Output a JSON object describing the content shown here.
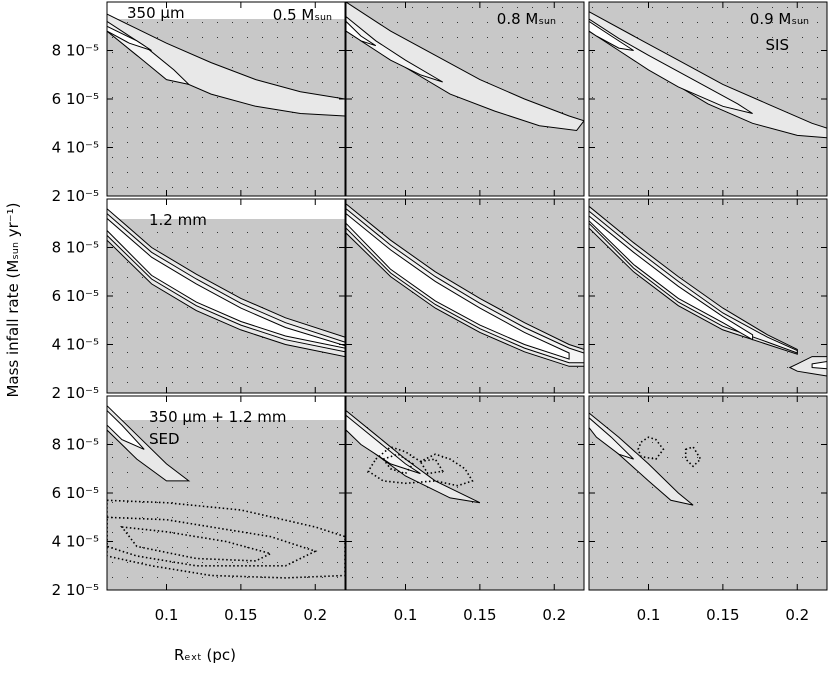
{
  "chart_data": {
    "type": "contour",
    "xlabel": "Rₑₓₜ (pc)",
    "ylabel": "Mass infall rate (Mₛᵤₙ yr⁻¹)",
    "xlim": [
      0.06,
      0.22
    ],
    "ylim": [
      2e-05,
      0.0001
    ],
    "xticks": [
      0.1,
      0.15,
      0.2
    ],
    "yticks": [
      {
        "value": 2e-05,
        "label": "2 10⁻⁵"
      },
      {
        "value": 4e-05,
        "label": "4 10⁻⁵"
      },
      {
        "value": 6e-05,
        "label": "6 10⁻⁵"
      },
      {
        "value": 8e-05,
        "label": "8 10⁻⁵"
      }
    ],
    "panels": [
      {
        "annotations": [
          "350 μm",
          "0.5 Mₛᵤₙ"
        ],
        "contours": [
          {
            "style": "solid",
            "fill": "#e8e8e8",
            "x": [
              0.06,
              0.08,
              0.1,
              0.13,
              0.16,
              0.19,
              0.22,
              0.22,
              0.19,
              0.16,
              0.13,
              0.1,
              0.08,
              0.06
            ],
            "y": [
              9.5e-05,
              8.9e-05,
              8.3e-05,
              7.5e-05,
              6.8e-05,
              6.3e-05,
              6e-05,
              5.3e-05,
              5.4e-05,
              5.7e-05,
              6.2e-05,
              7e-05,
              7.8e-05,
              8.8e-05
            ]
          },
          {
            "style": "solid",
            "fill": "#f4f4f4",
            "x": [
              0.06,
              0.085,
              0.105,
              0.115,
              0.1,
              0.08,
              0.06
            ],
            "y": [
              9.2e-05,
              8.2e-05,
              7.2e-05,
              6.6e-05,
              6.8e-05,
              7.8e-05,
              8.8e-05
            ]
          },
          {
            "style": "solid",
            "fill": "#ffffff",
            "x": [
              0.06,
              0.08,
              0.09,
              0.075,
              0.06
            ],
            "y": [
              9e-05,
              8.4e-05,
              8e-05,
              8.3e-05,
              8.8e-05
            ]
          }
        ]
      },
      {
        "annotations": [
          "0.8 Mₛᵤₙ"
        ],
        "contours": [
          {
            "style": "solid",
            "fill": "#e8e8e8",
            "x": [
              0.06,
              0.09,
              0.12,
              0.15,
              0.18,
              0.21,
              0.22,
              0.215,
              0.19,
              0.16,
              0.13,
              0.1,
              0.08,
              0.06
            ],
            "y": [
              0.0001,
              8.8e-05,
              7.8e-05,
              6.8e-05,
              6e-05,
              5.3e-05,
              5.1e-05,
              4.7e-05,
              4.9e-05,
              5.5e-05,
              6.2e-05,
              7.3e-05,
              8.2e-05,
              9.3e-05
            ]
          },
          {
            "style": "solid",
            "fill": "#f4f4f4",
            "x": [
              0.06,
              0.08,
              0.1,
              0.125,
              0.11,
              0.09,
              0.07,
              0.06
            ],
            "y": [
              9.4e-05,
              8.4e-05,
              7.6e-05,
              6.7e-05,
              7e-05,
              7.6e-05,
              8.4e-05,
              8.9e-05
            ]
          },
          {
            "style": "solid",
            "fill": "#ffffff",
            "x": [
              0.06,
              0.07,
              0.08,
              0.07,
              0.06
            ],
            "y": [
              9.2e-05,
              8.6e-05,
              8.2e-05,
              8.4e-05,
              8.8e-05
            ]
          }
        ]
      },
      {
        "annotations": [
          "0.9 Mₛᵤₙ",
          "SIS"
        ],
        "contours": [
          {
            "style": "solid",
            "fill": "#e8e8e8",
            "x": [
              0.06,
              0.09,
              0.12,
              0.15,
              0.18,
              0.21,
              0.22,
              0.22,
              0.2,
              0.17,
              0.14,
              0.11,
              0.08,
              0.06
            ],
            "y": [
              9.6e-05,
              8.6e-05,
              7.6e-05,
              6.6e-05,
              5.8e-05,
              5e-05,
              4.8e-05,
              4.4e-05,
              4.5e-05,
              5e-05,
              5.8e-05,
              6.9e-05,
              8.1e-05,
              9.1e-05
            ]
          },
          {
            "style": "solid",
            "fill": "#f4f4f4",
            "x": [
              0.06,
              0.08,
              0.1,
              0.13,
              0.16,
              0.17,
              0.15,
              0.12,
              0.1,
              0.08,
              0.06
            ],
            "y": [
              9.3e-05,
              8.5e-05,
              7.8e-05,
              6.8e-05,
              5.8e-05,
              5.4e-05,
              5.7e-05,
              6.5e-05,
              7.2e-05,
              8e-05,
              8.8e-05
            ]
          },
          {
            "style": "solid",
            "fill": "#ffffff",
            "x": [
              0.06,
              0.075,
              0.09,
              0.08,
              0.065,
              0.06
            ],
            "y": [
              9.2e-05,
              8.6e-05,
              8e-05,
              8.1e-05,
              8.6e-05,
              8.8e-05
            ]
          }
        ]
      },
      {
        "annotations": [
          "1.2 mm"
        ],
        "contours": [
          {
            "style": "solid",
            "fill": "#e8e8e8",
            "x": [
              0.06,
              0.09,
              0.12,
              0.15,
              0.18,
              0.22,
              0.22,
              0.18,
              0.15,
              0.12,
              0.09,
              0.06
            ],
            "y": [
              9.6e-05,
              8e-05,
              6.9e-05,
              5.9e-05,
              5.1e-05,
              4.3e-05,
              3.5e-05,
              4e-05,
              4.6e-05,
              5.4e-05,
              6.5e-05,
              8.3e-05
            ]
          },
          {
            "style": "solid",
            "fill": "#f4f4f4",
            "x": [
              0.06,
              0.09,
              0.12,
              0.15,
              0.18,
              0.22,
              0.22,
              0.18,
              0.15,
              0.12,
              0.09,
              0.06
            ],
            "y": [
              9.4e-05,
              7.8e-05,
              6.7e-05,
              5.7e-05,
              4.9e-05,
              4.1e-05,
              3.7e-05,
              4.2e-05,
              4.8e-05,
              5.6e-05,
              6.7e-05,
              8.5e-05
            ]
          },
          {
            "style": "solid",
            "fill": "#ffffff",
            "x": [
              0.06,
              0.09,
              0.12,
              0.15,
              0.18,
              0.22,
              0.22,
              0.18,
              0.15,
              0.12,
              0.09,
              0.06
            ],
            "y": [
              9.2e-05,
              7.6e-05,
              6.5e-05,
              5.5e-05,
              4.7e-05,
              3.95e-05,
              3.85e-05,
              4.35e-05,
              4.95e-05,
              5.75e-05,
              6.85e-05,
              8.7e-05
            ]
          }
        ]
      },
      {
        "annotations": [],
        "contours": [
          {
            "style": "solid",
            "fill": "#e8e8e8",
            "x": [
              0.06,
              0.09,
              0.12,
              0.15,
              0.18,
              0.21,
              0.22,
              0.22,
              0.21,
              0.18,
              0.15,
              0.12,
              0.09,
              0.06
            ],
            "y": [
              9.8e-05,
              8.3e-05,
              7e-05,
              5.9e-05,
              4.9e-05,
              4e-05,
              3.8e-05,
              3.1e-05,
              3.1e-05,
              3.7e-05,
              4.5e-05,
              5.5e-05,
              6.8e-05,
              8.6e-05
            ]
          },
          {
            "style": "solid",
            "fill": "#f4f4f4",
            "x": [
              0.06,
              0.09,
              0.12,
              0.15,
              0.18,
              0.21,
              0.22,
              0.22,
              0.21,
              0.18,
              0.15,
              0.12,
              0.09,
              0.06
            ],
            "y": [
              9.6e-05,
              8.1e-05,
              6.8e-05,
              5.7e-05,
              4.7e-05,
              3.85e-05,
              3.65e-05,
              3.25e-05,
              3.25e-05,
              3.85e-05,
              4.65e-05,
              5.65e-05,
              6.95e-05,
              8.8e-05
            ]
          },
          {
            "style": "solid",
            "fill": "#ffffff",
            "x": [
              0.06,
              0.09,
              0.12,
              0.15,
              0.18,
              0.21,
              0.21,
              0.18,
              0.15,
              0.12,
              0.09,
              0.06
            ],
            "y": [
              9.4e-05,
              7.9e-05,
              6.6e-05,
              5.5e-05,
              4.5e-05,
              3.65e-05,
              3.4e-05,
              4e-05,
              4.8e-05,
              5.8e-05,
              7.1e-05,
              9e-05
            ]
          }
        ]
      },
      {
        "annotations": [],
        "contours": [
          {
            "style": "solid",
            "fill": "#e8e8e8",
            "x": [
              0.06,
              0.09,
              0.12,
              0.15,
              0.18,
              0.2,
              0.2,
              0.18,
              0.15,
              0.12,
              0.09,
              0.06
            ],
            "y": [
              9.7e-05,
              8.2e-05,
              6.8e-05,
              5.5e-05,
              4.4e-05,
              3.8e-05,
              3.6e-05,
              4e-05,
              4.6e-05,
              5.6e-05,
              7e-05,
              8.8e-05
            ]
          },
          {
            "style": "solid",
            "fill": "#f4f4f4",
            "x": [
              0.06,
              0.09,
              0.12,
              0.15,
              0.18,
              0.2,
              0.2,
              0.18,
              0.15,
              0.12,
              0.09,
              0.06
            ],
            "y": [
              9.5e-05,
              8e-05,
              6.6e-05,
              5.3e-05,
              4.3e-05,
              3.75e-05,
              3.65e-05,
              4.1e-05,
              4.75e-05,
              5.75e-05,
              7.15e-05,
              9e-05
            ]
          },
          {
            "style": "solid",
            "fill": "#ffffff",
            "x": [
              0.06,
              0.09,
              0.12,
              0.15,
              0.17,
              0.17,
              0.15,
              0.12,
              0.09,
              0.06
            ],
            "y": [
              9.3e-05,
              7.8e-05,
              6.4e-05,
              5.15e-05,
              4.4e-05,
              4.2e-05,
              4.9e-05,
              5.9e-05,
              7.3e-05,
              9.1e-05
            ]
          },
          {
            "style": "solid",
            "fill": "#e8e8e8",
            "x": [
              0.2,
              0.21,
              0.22,
              0.22,
              0.21,
              0.2,
              0.195
            ],
            "y": [
              3.2e-05,
              3.5e-05,
              3.5e-05,
              2.7e-05,
              2.8e-05,
              2.9e-05,
              3.05e-05
            ]
          },
          {
            "style": "solid",
            "fill": "#ffffff",
            "x": [
              0.21,
              0.22,
              0.22,
              0.21
            ],
            "y": [
              3.2e-05,
              3.3e-05,
              3e-05,
              3.05e-05
            ]
          }
        ]
      },
      {
        "annotations": [
          "350 μm + 1.2 mm",
          "SED"
        ],
        "contours": [
          {
            "style": "solid",
            "fill": "#e8e8e8",
            "x": [
              0.06,
              0.08,
              0.1,
              0.115,
              0.1,
              0.08,
              0.06
            ],
            "y": [
              9.6e-05,
              8.4e-05,
              7.2e-05,
              6.5e-05,
              6.5e-05,
              7.4e-05,
              8.6e-05
            ]
          },
          {
            "style": "solid",
            "fill": "#ffffff",
            "x": [
              0.06,
              0.07,
              0.085,
              0.07,
              0.06
            ],
            "y": [
              9.4e-05,
              8.8e-05,
              7.8e-05,
              8.2e-05,
              8.8e-05
            ]
          },
          {
            "style": "dotted",
            "fill": "none",
            "x": [
              0.06,
              0.1,
              0.15,
              0.2,
              0.22,
              0.22,
              0.18,
              0.13,
              0.09,
              0.06
            ],
            "y": [
              5.7e-05,
              5.6e-05,
              5.3e-05,
              4.6e-05,
              4.2e-05,
              2.6e-05,
              2.5e-05,
              2.6e-05,
              3e-05,
              3.4e-05
            ]
          },
          {
            "style": "dotted",
            "fill": "none",
            "x": [
              0.06,
              0.1,
              0.14,
              0.17,
              0.2,
              0.18,
              0.12,
              0.08,
              0.06
            ],
            "y": [
              5e-05,
              4.9e-05,
              4.5e-05,
              4.2e-05,
              3.6e-05,
              3e-05,
              3e-05,
              3.4e-05,
              3.8e-05
            ]
          },
          {
            "style": "dotted",
            "fill": "none",
            "x": [
              0.07,
              0.1,
              0.14,
              0.17,
              0.16,
              0.12,
              0.08
            ],
            "y": [
              4.6e-05,
              4.4e-05,
              4e-05,
              3.5e-05,
              3.2e-05,
              3.3e-05,
              3.8e-05
            ]
          }
        ]
      },
      {
        "annotations": [],
        "contours": [
          {
            "style": "solid",
            "fill": "#e8e8e8",
            "x": [
              0.06,
              0.08,
              0.1,
              0.12,
              0.14,
              0.15,
              0.13,
              0.1,
              0.08,
              0.06
            ],
            "y": [
              9.4e-05,
              8.4e-05,
              7.4e-05,
              6.5e-05,
              5.9e-05,
              5.6e-05,
              5.8e-05,
              6.7e-05,
              7.6e-05,
              8.6e-05
            ]
          },
          {
            "style": "solid",
            "fill": "#f4f4f4",
            "x": [
              0.06,
              0.08,
              0.1,
              0.11,
              0.09,
              0.07,
              0.06
            ],
            "y": [
              9.2e-05,
              8.2e-05,
              7.2e-05,
              6.8e-05,
              7.2e-05,
              8e-05,
              8.6e-05
            ]
          },
          {
            "style": "dotted",
            "fill": "none",
            "x": [
              0.08,
              0.09,
              0.1,
              0.11,
              0.12,
              0.13,
              0.14,
              0.145,
              0.135,
              0.12,
              0.1,
              0.085,
              0.075
            ],
            "y": [
              7.4e-05,
              7.9e-05,
              7.7e-05,
              7.3e-05,
              7.6e-05,
              7.4e-05,
              7e-05,
              6.5e-05,
              6.3e-05,
              6.5e-05,
              6.4e-05,
              6.5e-05,
              6.9e-05
            ]
          },
          {
            "style": "dotted",
            "fill": "none",
            "x": [
              0.085,
              0.095,
              0.105,
              0.1,
              0.09
            ],
            "y": [
              7.4e-05,
              7.6e-05,
              7.2e-05,
              6.8e-05,
              7e-05
            ]
          },
          {
            "style": "dotted",
            "fill": "none",
            "x": [
              0.11,
              0.12,
              0.125,
              0.115
            ],
            "y": [
              7.3e-05,
              7.4e-05,
              6.9e-05,
              6.8e-05
            ]
          }
        ]
      },
      {
        "annotations": [],
        "contours": [
          {
            "style": "solid",
            "fill": "#e8e8e8",
            "x": [
              0.06,
              0.08,
              0.1,
              0.12,
              0.13,
              0.115,
              0.1,
              0.08,
              0.06
            ],
            "y": [
              9.3e-05,
              8.3e-05,
              7.2e-05,
              6e-05,
              5.5e-05,
              5.7e-05,
              6.5e-05,
              7.6e-05,
              8.7e-05
            ]
          },
          {
            "style": "solid",
            "fill": "#f4f4f4",
            "x": [
              0.06,
              0.075,
              0.09,
              0.08,
              0.065,
              0.06
            ],
            "y": [
              9.1e-05,
              8.3e-05,
              7.4e-05,
              7.6e-05,
              8.3e-05,
              8.7e-05
            ]
          },
          {
            "style": "dotted",
            "fill": "none",
            "x": [
              0.095,
              0.1,
              0.105,
              0.11,
              0.105,
              0.095,
              0.093
            ],
            "y": [
              8.1e-05,
              8.3e-05,
              8.2e-05,
              7.8e-05,
              7.4e-05,
              7.5e-05,
              7.8e-05
            ]
          },
          {
            "style": "dotted",
            "fill": "none",
            "x": [
              0.125,
              0.13,
              0.135,
              0.13,
              0.125
            ],
            "y": [
              7.8e-05,
              7.9e-05,
              7.4e-05,
              7.1e-05,
              7.4e-05
            ]
          }
        ]
      }
    ]
  }
}
